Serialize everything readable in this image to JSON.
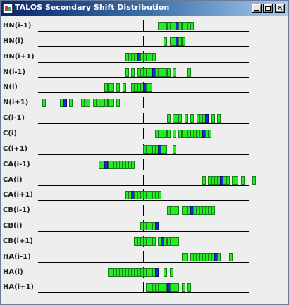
{
  "window": {
    "title": "TALOS Secondary Shift Distribution",
    "buttons": {
      "minimize": "minimize",
      "maximize": "maximize",
      "close": "✕"
    }
  },
  "colors": {
    "bar": "#22ee22",
    "bar_border": "#1c7a1c",
    "marker": "#1a2adf"
  },
  "rows": [
    {
      "label": "HN(i-1)",
      "bins": [
        40,
        41,
        42,
        43,
        44,
        45,
        46,
        47,
        48,
        49,
        50,
        51
      ],
      "marker": [
        46
      ]
    },
    {
      "label": "HN(i)",
      "bins": [
        42,
        44,
        45,
        46,
        47,
        48
      ],
      "marker": [
        46
      ]
    },
    {
      "label": "HN(i+1)",
      "bins": [
        29,
        30,
        31,
        32,
        33,
        34,
        35,
        36,
        37,
        38
      ],
      "marker": [
        33
      ]
    },
    {
      "label": "N(i-1)",
      "bins": [
        29,
        31,
        33,
        34,
        35,
        36,
        37,
        38,
        39,
        40,
        41,
        42,
        43,
        45,
        50
      ],
      "marker": [
        38
      ]
    },
    {
      "label": "N(i)",
      "bins": [
        22,
        23,
        24,
        26,
        28,
        31,
        32,
        33,
        34,
        35,
        36,
        37
      ],
      "marker": [
        35
      ]
    },
    {
      "label": "N(i+1)",
      "bins": [
        1,
        7,
        8,
        10,
        14,
        15,
        16,
        18,
        19,
        20,
        21,
        22,
        23,
        24,
        26
      ],
      "marker": [
        8
      ]
    },
    {
      "label": "C(i-1)",
      "bins": [
        43,
        45,
        46,
        47,
        49,
        51,
        53,
        54,
        55,
        56,
        58,
        60
      ],
      "marker": [
        56
      ]
    },
    {
      "label": "C(i)",
      "bins": [
        39,
        40,
        41,
        42,
        43,
        45,
        47,
        48,
        49,
        50,
        51,
        52,
        53,
        54,
        55,
        56,
        57
      ],
      "marker": [
        55
      ]
    },
    {
      "label": "C(i+1)",
      "bins": [
        35,
        36,
        37,
        38,
        39,
        40,
        41,
        42,
        45
      ],
      "marker": [
        40
      ]
    },
    {
      "label": "CA(i-1)",
      "bins": [
        20,
        21,
        22,
        23,
        24,
        25,
        26,
        27,
        28,
        29,
        30,
        31
      ],
      "marker": [
        22
      ]
    },
    {
      "label": "CA(i)",
      "bins": [
        55,
        57,
        58,
        59,
        60,
        61,
        62,
        63,
        65,
        66,
        68,
        72
      ],
      "marker": [
        61
      ]
    },
    {
      "label": "CA(i+1)",
      "bins": [
        29,
        30,
        31,
        32,
        33,
        34,
        35,
        36,
        37,
        38,
        39,
        40
      ],
      "marker": [
        31
      ]
    },
    {
      "label": "CB(i-1)",
      "bins": [
        43,
        44,
        45,
        46,
        48,
        49,
        50,
        51,
        52,
        53,
        54,
        55,
        56,
        57,
        58
      ],
      "marker": [
        51
      ]
    },
    {
      "label": "CB(i)",
      "bins": [
        34,
        35,
        36,
        37,
        38,
        39
      ],
      "marker": [
        39
      ]
    },
    {
      "label": "CB(i+1)",
      "bins": [
        32,
        33,
        34,
        35,
        36,
        37,
        38,
        40,
        41,
        42,
        43,
        44,
        45,
        46
      ],
      "marker": [
        41
      ]
    },
    {
      "label": "HA(i-1)",
      "bins": [
        48,
        49,
        51,
        52,
        53,
        54,
        55,
        56,
        57,
        58,
        59,
        60,
        64
      ],
      "marker": [
        59
      ]
    },
    {
      "label": "HA(i)",
      "bins": [
        23,
        24,
        25,
        26,
        27,
        28,
        29,
        30,
        31,
        32,
        33,
        34,
        35,
        36,
        37,
        38,
        39,
        42,
        44
      ],
      "marker": [
        39
      ]
    },
    {
      "label": "HA(i+1)",
      "bins": [
        36,
        37,
        38,
        39,
        40,
        41,
        42,
        43,
        44,
        45,
        46,
        48,
        50
      ],
      "marker": [
        43
      ]
    }
  ]
}
